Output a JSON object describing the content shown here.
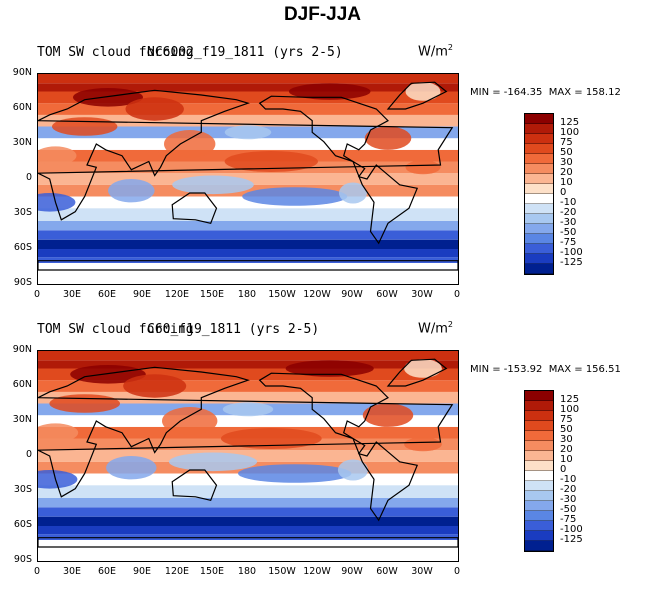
{
  "suptitle": "DJF-JJA",
  "chart_data": [
    {
      "type": "heatmap",
      "title": "TOM SW cloud forcing",
      "subtitle": "NC6002_f19_1811 (yrs 2-5)",
      "units": "W/m",
      "units_sup": "2",
      "min_label": "MIN = -164.35",
      "max_label": "MAX = 158.12",
      "min": -164.35,
      "max": 158.12
    },
    {
      "type": "heatmap",
      "title": "TOM SW cloud forcing",
      "subtitle": "C60_f19_1811 (yrs 2-5)",
      "units": "W/m",
      "units_sup": "2",
      "min_label": "MIN = -153.92",
      "max_label": "MAX = 156.51",
      "min": -153.92,
      "max": 156.51
    }
  ],
  "axes": {
    "lat_ticks": [
      "90N",
      "60N",
      "30N",
      "0",
      "30S",
      "60S",
      "90S"
    ],
    "lon_ticks": [
      "0",
      "30E",
      "60E",
      "90E",
      "120E",
      "150E",
      "180",
      "150W",
      "120W",
      "90W",
      "60W",
      "30W",
      "0"
    ]
  },
  "colorbar": {
    "levels": [
      "125",
      "100",
      "75",
      "50",
      "30",
      "20",
      "10",
      "0",
      "-10",
      "-20",
      "-30",
      "-50",
      "-75",
      "-100",
      "-125"
    ],
    "colors": [
      "#8b0000",
      "#b01a08",
      "#cc3010",
      "#e04a1e",
      "#f06a3a",
      "#f58c60",
      "#fbb592",
      "#fde0c8",
      "#ffffff",
      "#cfe2f6",
      "#a8c8f0",
      "#84a8ec",
      "#5a86e4",
      "#3a5ed8",
      "#1a3cc0",
      "#002090"
    ]
  }
}
